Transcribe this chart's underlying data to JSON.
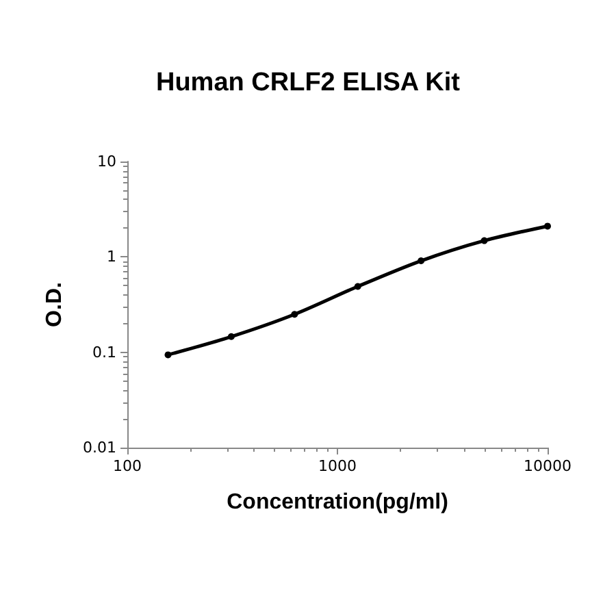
{
  "chart_data": {
    "type": "line",
    "title": "Human CRLF2 ELISA Kit",
    "xlabel": "Concentration(pg/ml)",
    "ylabel": "O.D.",
    "x": [
      156.25,
      312.5,
      625,
      1250,
      2500,
      5000,
      10000
    ],
    "series": [
      {
        "color": "#000000",
        "values": [
          0.094,
          0.146,
          0.25,
          0.49,
          0.91,
          1.48,
          2.1
        ]
      }
    ],
    "xlim": [
      100,
      10000
    ],
    "xticks": [
      100,
      1000,
      10000
    ],
    "ylim": [
      0.01,
      10
    ],
    "yticks": [
      0.01,
      0.1,
      1,
      10
    ],
    "log": "xy",
    "grid": false,
    "marker": "circle",
    "line_style": "solid"
  }
}
